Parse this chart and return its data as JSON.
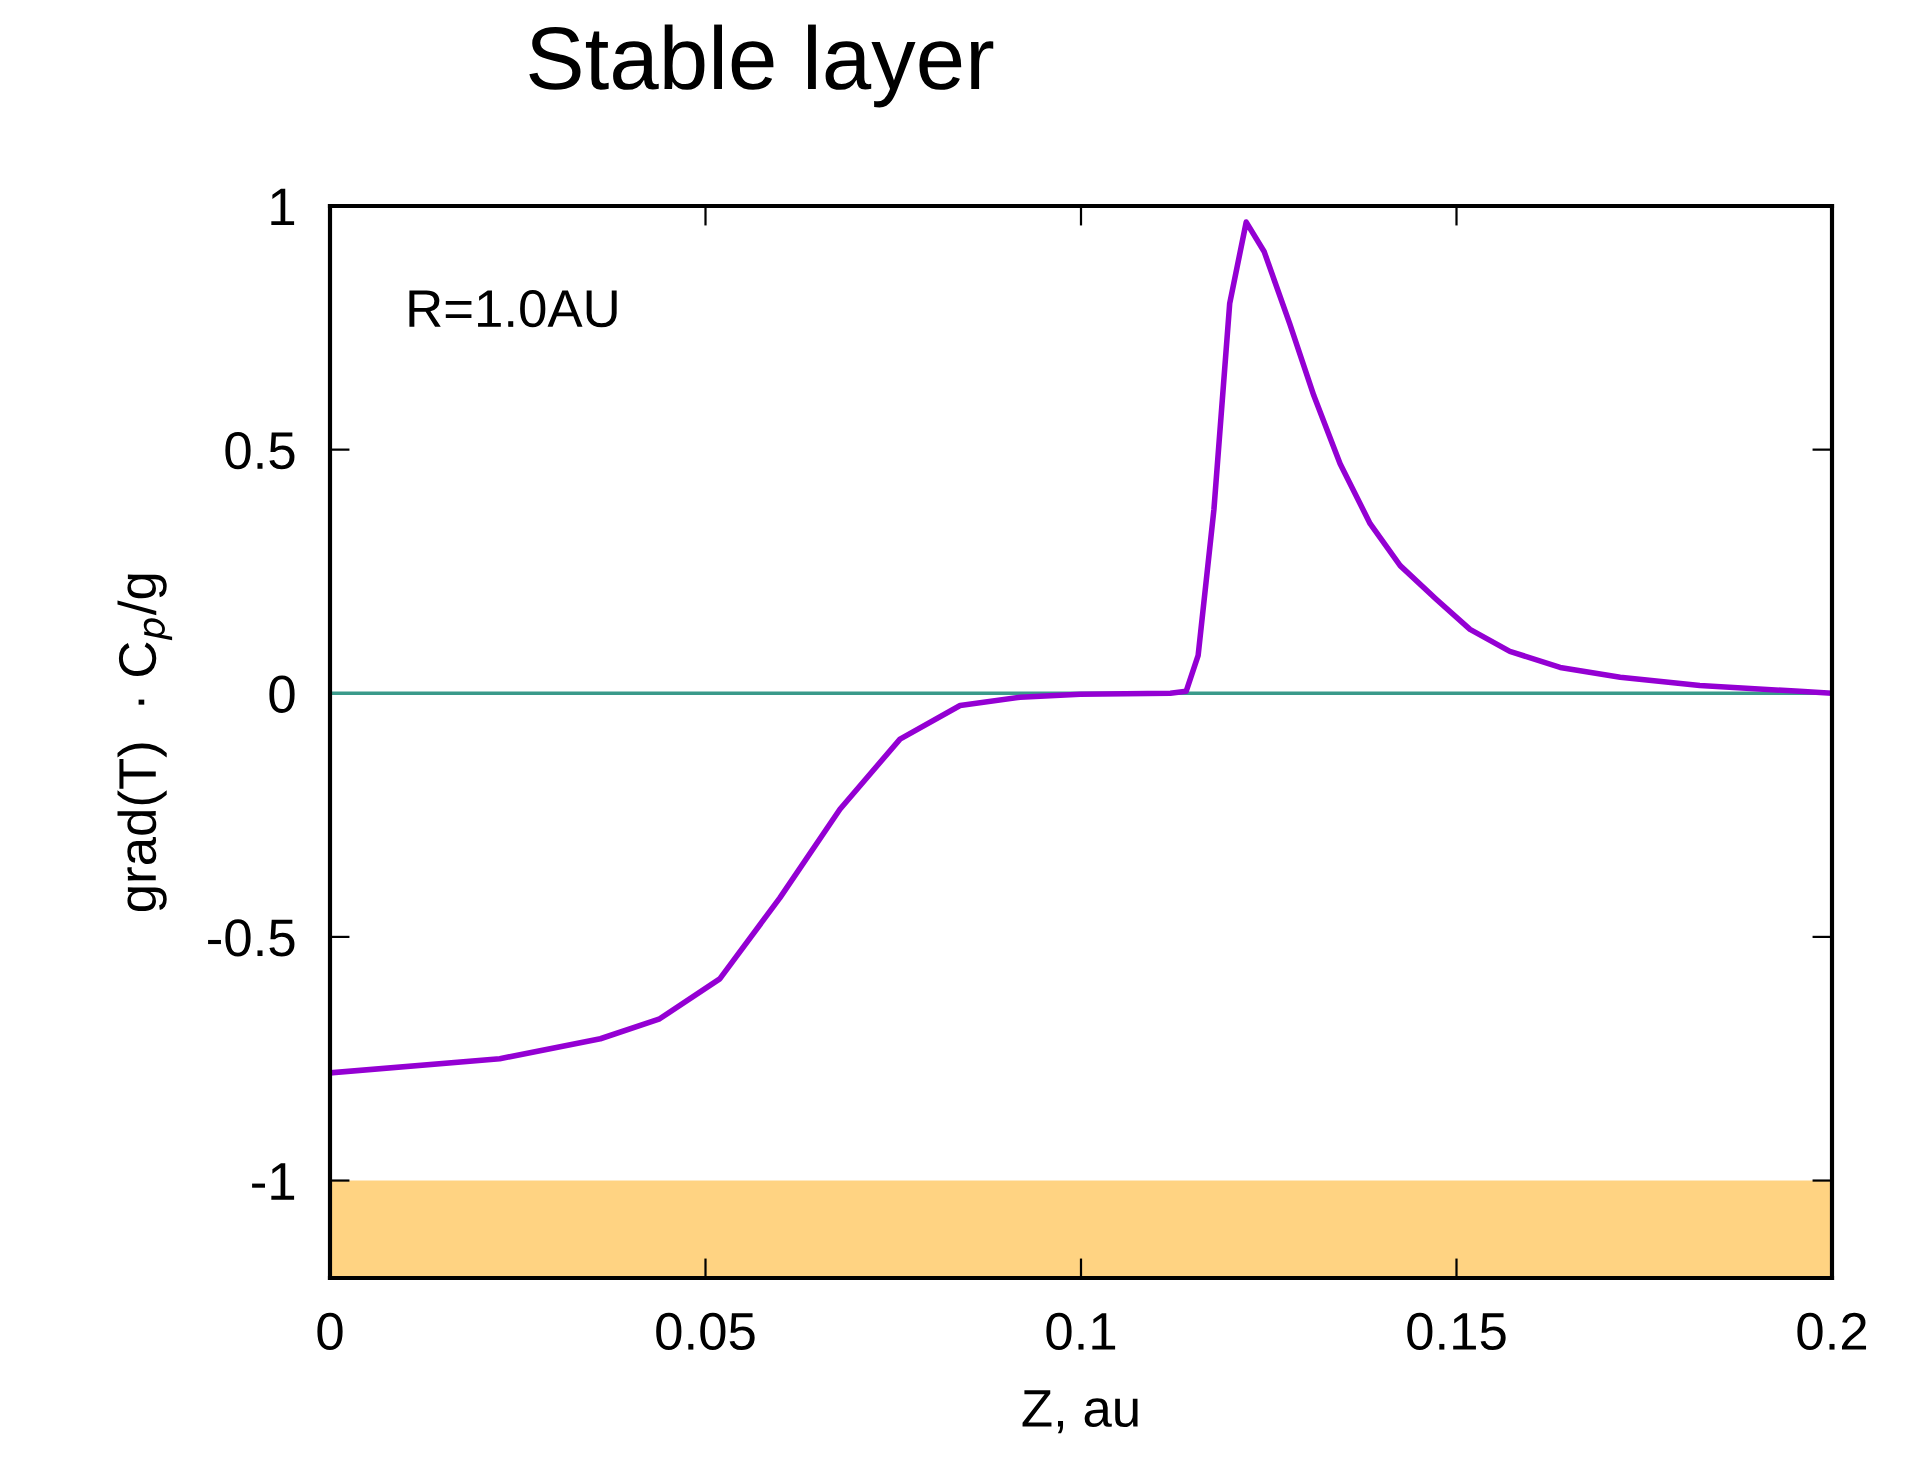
{
  "chart_data": {
    "type": "line",
    "title": "Stable layer",
    "xlabel": "Z, au",
    "ylabel": "grad(T)  · C$_{p}$/g",
    "annotations": [
      "R=1.0AU"
    ],
    "series": [
      {
        "color": "#9400d3",
        "x": [
          0,
          0.0226,
          0.036,
          0.0439,
          0.0519,
          0.0599,
          0.0679,
          0.0759,
          0.0839,
          0.0919,
          0.0999,
          0.1119,
          0.114,
          0.1156,
          0.1177,
          0.1198,
          0.122,
          0.1244,
          0.1278,
          0.131,
          0.1345,
          0.1385,
          0.1425,
          0.1473,
          0.1518,
          0.1571,
          0.1638,
          0.1718,
          0.1824,
          0.1957,
          0.2
        ],
        "values": [
          -0.779,
          -0.75,
          -0.709,
          -0.668,
          -0.586,
          -0.42,
          -0.238,
          -0.094,
          -0.025,
          -0.008,
          -0.002,
          0,
          0.004,
          0.078,
          0.377,
          0.8,
          0.967,
          0.906,
          0.758,
          0.611,
          0.471,
          0.348,
          0.262,
          0.193,
          0.131,
          0.086,
          0.053,
          0.033,
          0.016,
          0.004,
          0
        ]
      }
    ],
    "ref_lines": [
      {
        "axis": "y",
        "value": 0,
        "color": "#3a9a8a"
      }
    ],
    "bands": [
      {
        "axis": "y",
        "from": -1.2,
        "to": -1,
        "color": "#ffd382"
      }
    ],
    "xlim": [
      0,
      0.2
    ],
    "xticks": [
      0,
      0.05,
      0.1,
      0.15,
      0.2
    ],
    "ylim": [
      -1.2,
      1
    ],
    "yticks": [
      -1,
      -0.5,
      0,
      0.5,
      1
    ],
    "grid": false,
    "legend": false,
    "marker": "none",
    "line_style": "solid"
  }
}
